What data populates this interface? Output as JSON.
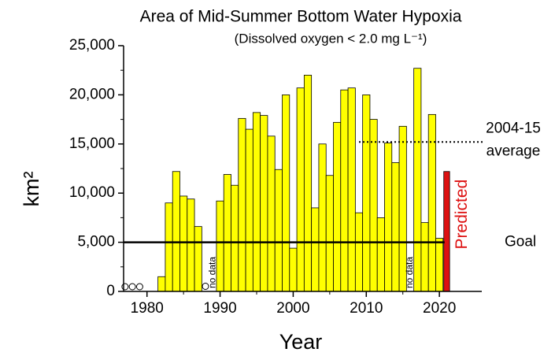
{
  "chart_data": {
    "type": "bar",
    "title": "Area of Mid-Summer Bottom Water Hypoxia",
    "subtitle": "(Dissolved oxygen < 2.0 mg L⁻¹)",
    "x_label": "Year",
    "y_label": "km²",
    "x": [
      1982,
      1983,
      1984,
      1985,
      1986,
      1987,
      1988,
      1989,
      1990,
      1991,
      1992,
      1993,
      1994,
      1995,
      1996,
      1997,
      1998,
      1999,
      2000,
      2001,
      2002,
      2003,
      2004,
      2005,
      2006,
      2007,
      2008,
      2009,
      2010,
      2011,
      2012,
      2013,
      2014,
      2015,
      2016,
      2017,
      2018,
      2019,
      2020
    ],
    "values": [
      1500,
      9000,
      12200,
      9700,
      9400,
      6600,
      null,
      null,
      9200,
      11900,
      10800,
      17600,
      16500,
      18200,
      17900,
      15800,
      12400,
      20000,
      4400,
      20700,
      22000,
      8500,
      15000,
      11800,
      17200,
      20500,
      20700,
      8000,
      20000,
      17500,
      7500,
      15100,
      13100,
      16800,
      null,
      22700,
      7000,
      18000,
      5400
    ],
    "color": "#ffff00",
    "circles": {
      "x": [
        1977,
        1978,
        1979,
        1988
      ],
      "values": [
        0,
        0,
        0,
        40
      ]
    },
    "predicted": {
      "x": 2021,
      "value": 12200,
      "label": "Predicted",
      "color": "#dd1111"
    },
    "goal": {
      "value": 5000,
      "label": "Goal"
    },
    "average": {
      "value": 15200,
      "label": [
        "2004-15",
        "average"
      ],
      "start": 2009
    },
    "no_data": [
      {
        "x": 1989,
        "label": "no data"
      },
      {
        "x": 2016,
        "label": "no data"
      }
    ],
    "xlim": [
      1976.8,
      2025.8
    ],
    "xticks": [
      1980,
      1990,
      2000,
      2010,
      2020
    ],
    "ylim": [
      0,
      25000
    ],
    "yticks": [
      0,
      {
        "value": 5000,
        "label": "5,000"
      },
      {
        "value": 10000,
        "label": "10,000"
      },
      {
        "value": 15000,
        "label": "15,000"
      },
      {
        "value": 20000,
        "label": "20,000"
      },
      {
        "value": 25000,
        "label": "25,000"
      }
    ]
  }
}
